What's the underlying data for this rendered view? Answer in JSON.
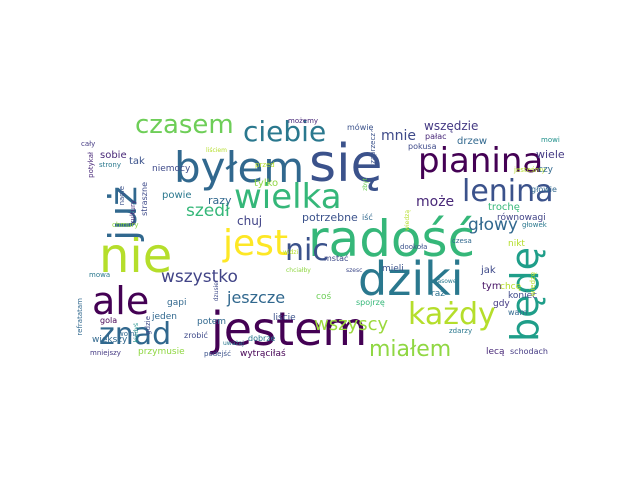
{
  "words": [
    {
      "text": "się",
      "color": "#3b528b"
    },
    {
      "text": "radość",
      "color": "#35b779"
    },
    {
      "text": "jestem",
      "color": "#440154"
    },
    {
      "text": "byłem",
      "color": "#31688e"
    },
    {
      "text": "dziki",
      "color": "#2a788e"
    },
    {
      "text": "pianina",
      "color": "#440154"
    },
    {
      "text": "nie",
      "color": "#b5de2b"
    },
    {
      "text": "jest",
      "color": "#fde725"
    },
    {
      "text": "wielka",
      "color": "#35b779"
    },
    {
      "text": "lenina",
      "color": "#3b528b"
    },
    {
      "text": "już",
      "color": "#31688e"
    },
    {
      "text": "będę",
      "color": "#1f9e89"
    },
    {
      "text": "ale",
      "color": "#440154"
    },
    {
      "text": "każdy",
      "color": "#b5de2b"
    },
    {
      "text": "znad",
      "color": "#31688e"
    },
    {
      "text": "nic",
      "color": "#3b528b"
    },
    {
      "text": "ciebie",
      "color": "#2a788e"
    },
    {
      "text": "czasem",
      "color": "#6ece58"
    },
    {
      "text": "miałem",
      "color": "#90d743"
    },
    {
      "text": "wszyscy",
      "color": "#9bd93c"
    },
    {
      "text": "szedł",
      "color": "#35b779"
    },
    {
      "text": "głowy",
      "color": "#31688e"
    },
    {
      "text": "wszystko",
      "color": "#414487"
    },
    {
      "text": "jeszcze",
      "color": "#31688e"
    },
    {
      "text": "mnie",
      "color": "#3e4a89"
    },
    {
      "text": "może",
      "color": "#482878"
    },
    {
      "text": "wszędzie",
      "color": "#443983"
    },
    {
      "text": "chuj",
      "color": "#414487"
    },
    {
      "text": "potrzebne",
      "color": "#3b528b"
    },
    {
      "text": "razy",
      "color": "#31688e"
    },
    {
      "text": "powie",
      "color": "#2a788e"
    },
    {
      "text": "tak",
      "color": "#3b528b"
    },
    {
      "text": "sobie",
      "color": "#482878"
    },
    {
      "text": "niemocy",
      "color": "#3e4a89"
    },
    {
      "text": "tylko",
      "color": "#90d743"
    },
    {
      "text": "mówię",
      "color": "#3b528b"
    },
    {
      "text": "jak",
      "color": "#3e4a89"
    },
    {
      "text": "tym",
      "color": "#471365"
    },
    {
      "text": "chcę",
      "color": "#b5de2b"
    },
    {
      "text": "gdy",
      "color": "#443983"
    },
    {
      "text": "raz",
      "color": "#2c728e"
    },
    {
      "text": "wiele",
      "color": "#443983"
    },
    {
      "text": "drzew",
      "color": "#31688e"
    },
    {
      "text": "pokusa",
      "color": "#3e4a89"
    },
    {
      "text": "pałac",
      "color": "#482878"
    },
    {
      "text": "trochę",
      "color": "#35b779"
    },
    {
      "text": "równowagi",
      "color": "#414487"
    },
    {
      "text": "głowie",
      "color": "#31688e"
    },
    {
      "text": "głowek",
      "color": "#2a788e"
    },
    {
      "text": "jesteśmy",
      "color": "#b5de2b"
    },
    {
      "text": "czy",
      "color": "#31688e"
    },
    {
      "text": "mowi",
      "color": "#21918c"
    },
    {
      "text": "nikt",
      "color": "#b5de2b"
    },
    {
      "text": "czesa",
      "color": "#31688e"
    },
    {
      "text": "mieli",
      "color": "#3b528b"
    },
    {
      "text": "koniec",
      "color": "#3e4a89"
    },
    {
      "text": "wam",
      "color": "#31688e"
    },
    {
      "text": "zdarzy",
      "color": "#2a788e"
    },
    {
      "text": "lecą",
      "color": "#482878"
    },
    {
      "text": "schodach",
      "color": "#443983"
    },
    {
      "text": "spojrzę",
      "color": "#35b779"
    },
    {
      "text": "coś",
      "color": "#6ece58"
    },
    {
      "text": "mstać",
      "color": "#3e4a89"
    },
    {
      "text": "iść",
      "color": "#31688e"
    },
    {
      "text": "liście",
      "color": "#3b528b"
    },
    {
      "text": "dobrze",
      "color": "#2a788e"
    },
    {
      "text": "zrobić",
      "color": "#3e4a89"
    },
    {
      "text": "potem",
      "color": "#31688e"
    },
    {
      "text": "wytrąciłaś",
      "color": "#440154"
    },
    {
      "text": "podejść",
      "color": "#3b528b"
    },
    {
      "text": "uważaj",
      "color": "#2a788e"
    },
    {
      "text": "przymusie",
      "color": "#90d743"
    },
    {
      "text": "mniejszy",
      "color": "#443983"
    },
    {
      "text": "większy",
      "color": "#31688e"
    },
    {
      "text": "gapi",
      "color": "#31688e"
    },
    {
      "text": "jeden",
      "color": "#31688e"
    },
    {
      "text": "strony",
      "color": "#2a788e"
    },
    {
      "text": "cały",
      "color": "#443983"
    },
    {
      "text": "potykał",
      "color": "#482878"
    },
    {
      "text": "nagle",
      "color": "#3b528b"
    },
    {
      "text": "straszne",
      "color": "#3e4a89"
    },
    {
      "text": "kultury",
      "color": "#482878"
    },
    {
      "text": "chmury",
      "color": "#90d743"
    },
    {
      "text": "refratatam",
      "color": "#31688e"
    },
    {
      "text": "mowa",
      "color": "#2a788e"
    },
    {
      "text": "gdzie",
      "color": "#3e4a89"
    },
    {
      "text": "gola",
      "color": "#440154"
    },
    {
      "text": "wolni",
      "color": "#31688e"
    },
    {
      "text": "kiedyś",
      "color": "#21918c"
    },
    {
      "text": "dookoła",
      "color": "#3b528b"
    },
    {
      "text": "szesc",
      "color": "#3e4a89"
    },
    {
      "text": "wiedzę",
      "color": "#b5de2b"
    },
    {
      "text": "możemy",
      "color": "#482878"
    },
    {
      "text": "zaprzecz",
      "color": "#3b528b"
    },
    {
      "text": "przed",
      "color": "#b5de2b"
    },
    {
      "text": "liściem",
      "color": "#b5de2b"
    },
    {
      "text": "dzusie",
      "color": "#3e4a89"
    },
    {
      "text": "widzi",
      "color": "#b5de2b"
    },
    {
      "text": "chciałby",
      "color": "#90d743"
    },
    {
      "text": "czasowe",
      "color": "#2a788e"
    },
    {
      "text": "zbyt",
      "color": "#6ece58"
    },
    {
      "text": "wiedzą",
      "color": "#b5de2b"
    }
  ]
}
